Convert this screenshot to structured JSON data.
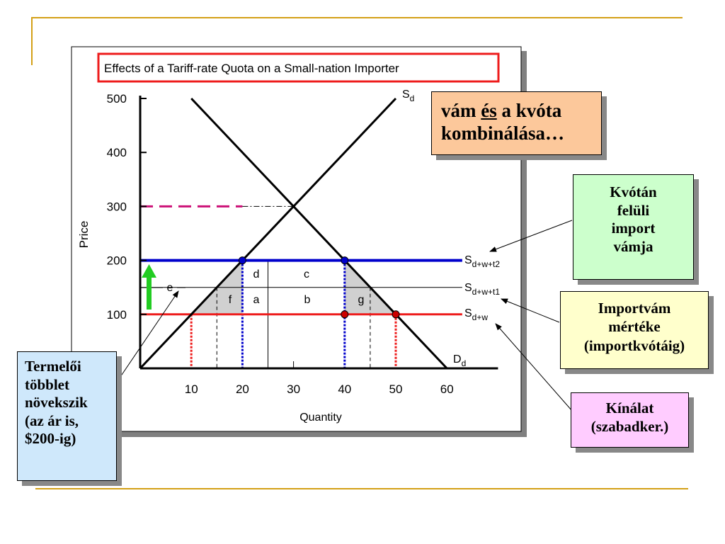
{
  "chart_data": {
    "type": "line",
    "title": "Effects of a Tariff-rate Quota on a Small-nation Importer",
    "xlabel": "Quantity",
    "ylabel": "Price",
    "xlim": [
      0,
      70
    ],
    "ylim": [
      0,
      500
    ],
    "x_ticks": [
      10,
      20,
      30,
      40,
      50,
      60
    ],
    "y_ticks": [
      100,
      200,
      300,
      400,
      500
    ],
    "series": [
      {
        "name": "Sd",
        "label_main": "S",
        "label_sub": "d",
        "color": "#000000",
        "points": [
          [
            0,
            0
          ],
          [
            50,
            500
          ]
        ]
      },
      {
        "name": "Dd",
        "label_main": "D",
        "label_sub": "d",
        "color": "#000000",
        "points": [
          [
            10,
            500
          ],
          [
            60,
            0
          ]
        ]
      },
      {
        "name": "Sd+w",
        "label_main": "S",
        "label_sub": "d+w",
        "color": "#ee1c1c",
        "y": 100
      },
      {
        "name": "Sd+w+t1",
        "label_main": "S",
        "label_sub": "d+w+t1",
        "color": "#000000",
        "y": 150
      },
      {
        "name": "Sd+w+t2",
        "label_main": "S",
        "label_sub": "d+w+t2",
        "color": "#0000cc",
        "y": 200
      }
    ],
    "dash_level": 300,
    "area_labels": [
      "d",
      "c",
      "f",
      "a",
      "b",
      "g",
      "e"
    ],
    "annotations": {
      "combo_text_before": "vám ",
      "combo_text_underlined": "és",
      "combo_text_after": " a kvóta",
      "combo_text_line2": "kombinálása…",
      "producer_lines": [
        "Termelői",
        "többlet",
        "növekszik",
        "(az ár is,",
        "$200-ig)"
      ],
      "over_quota_lines": [
        "Kvótán",
        "felüli",
        "import",
        "vámja"
      ],
      "tariff_lines": [
        "Importvám",
        "mértéke",
        "(importkvótáig)"
      ],
      "supply_lines": [
        "Kínálat",
        "(szabadker.)"
      ]
    },
    "colors": {
      "free_trade_line": "#ee1c1c",
      "tariff_line": "#0000cc",
      "dashed_300": "#cc1177",
      "shaded_triangles": "#d0d0d0",
      "up_arrow": "#22cc22",
      "title_border": "#ee1c1c",
      "combo_box": "#fcc89b",
      "producer_box": "#cfe8fb",
      "over_quota_box": "#ccffcc",
      "tariff_box": "#ffffcc",
      "supply_box": "#ffccff",
      "decor": "#d4a017"
    }
  }
}
